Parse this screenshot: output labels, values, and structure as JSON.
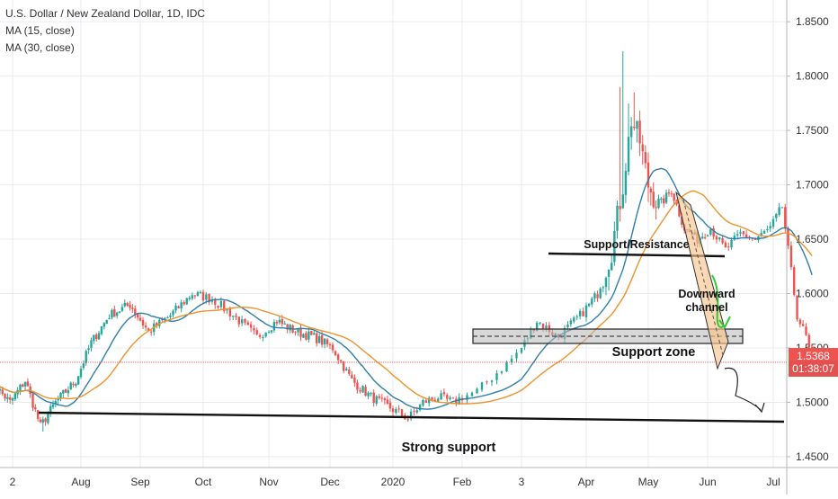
{
  "header": {
    "title": "U.S. Dollar / New Zealand Dollar, 1D, IDC",
    "indicators": [
      "MA (15, close)",
      "MA (30, close)"
    ]
  },
  "price_tags": {
    "current": "1.5368",
    "countdown": "01:38:07"
  },
  "colors": {
    "up": "#26a69a",
    "down": "#ef5350",
    "ma15": "#2f7fa8",
    "ma30": "#f0922b",
    "grid": "#e7ebf0",
    "axis_text": "#333333",
    "current_line": "#ef5350",
    "channel_fill": "#f7c58c",
    "zone_fill": "#b8b8b8",
    "arrow_green": "#32c832"
  },
  "chart_data": {
    "type": "candlestick",
    "title": "U.S. Dollar / New Zealand Dollar, 1D, IDC",
    "ylim": [
      1.44,
      1.87
    ],
    "y_ticks": [
      "1.8500",
      "1.8000",
      "1.7500",
      "1.7000",
      "1.6500",
      "1.6000",
      "1.5500",
      "1.5000",
      "1.4500"
    ],
    "x_ticks": [
      "2",
      "Aug",
      "Sep",
      "Oct",
      "Nov",
      "Dec",
      "2020",
      "Feb",
      "3",
      "Apr",
      "May",
      "Jun",
      "Jul"
    ],
    "current_price": 1.5368,
    "close_anchors": [
      [
        0,
        1.52
      ],
      [
        8,
        1.5
      ],
      [
        14,
        1.52
      ],
      [
        20,
        1.478
      ],
      [
        26,
        1.5
      ],
      [
        34,
        1.52
      ],
      [
        40,
        1.555
      ],
      [
        47,
        1.58
      ],
      [
        55,
        1.59
      ],
      [
        62,
        1.565
      ],
      [
        70,
        1.58
      ],
      [
        78,
        1.6
      ],
      [
        85,
        1.595
      ],
      [
        92,
        1.58
      ],
      [
        100,
        1.56
      ],
      [
        107,
        1.575
      ],
      [
        114,
        1.565
      ],
      [
        121,
        1.56
      ],
      [
        128,
        1.55
      ],
      [
        135,
        1.52
      ],
      [
        142,
        1.505
      ],
      [
        149,
        1.495
      ],
      [
        155,
        1.485
      ],
      [
        160,
        1.5
      ],
      [
        165,
        1.505
      ],
      [
        170,
        1.5
      ],
      [
        176,
        1.51
      ],
      [
        183,
        1.54
      ],
      [
        190,
        1.575
      ],
      [
        197,
        1.56
      ],
      [
        204,
        1.58
      ],
      [
        210,
        1.6
      ],
      [
        215,
        1.64
      ],
      [
        219,
        1.7
      ],
      [
        222,
        1.76
      ],
      [
        225,
        1.74
      ],
      [
        228,
        1.7
      ],
      [
        232,
        1.68
      ],
      [
        237,
        1.695
      ],
      [
        242,
        1.66
      ],
      [
        247,
        1.65
      ],
      [
        252,
        1.66
      ],
      [
        257,
        1.64
      ],
      [
        262,
        1.655
      ],
      [
        267,
        1.65
      ],
      [
        272,
        1.66
      ],
      [
        276,
        1.68
      ],
      [
        278,
        1.64
      ],
      [
        281,
        1.58
      ],
      [
        284,
        1.56
      ],
      [
        286,
        1.537
      ]
    ],
    "series": [
      {
        "name": "MA (15, close)",
        "period": 15
      },
      {
        "name": "MA (30, close)",
        "period": 30
      }
    ],
    "annotations": [
      {
        "text": "Support/Resistance"
      },
      {
        "text": "Downward"
      },
      {
        "text": "channel"
      },
      {
        "text": "Support zone"
      },
      {
        "text": "Strong support"
      }
    ]
  }
}
